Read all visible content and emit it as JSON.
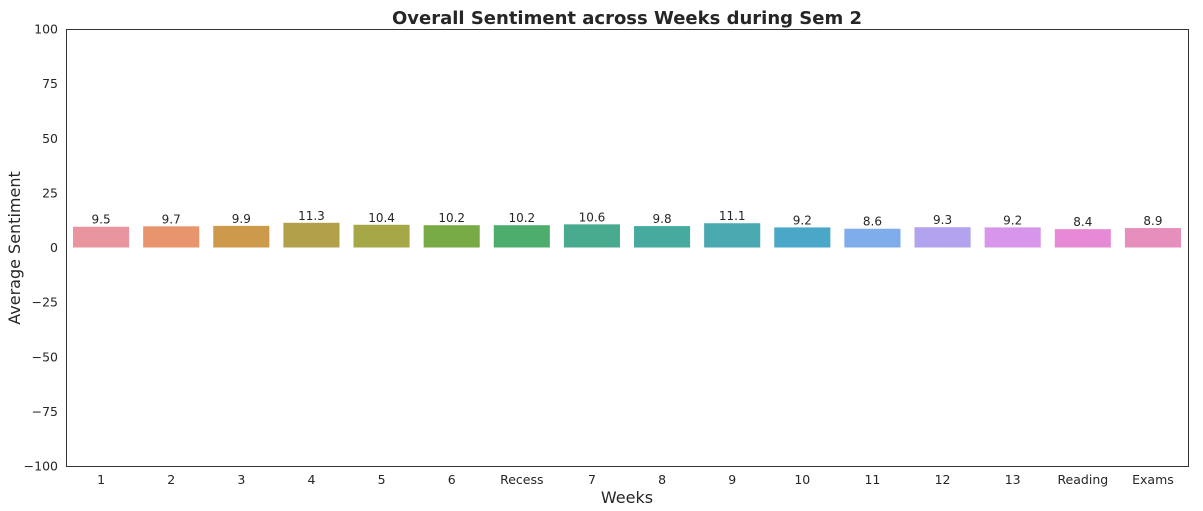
{
  "chart_data": {
    "type": "bar",
    "title": "Overall Sentiment across Weeks during Sem 2",
    "xlabel": "Weeks",
    "ylabel": "Average Sentiment",
    "ylim": [
      -100,
      100
    ],
    "yticks": [
      100,
      75,
      50,
      25,
      0,
      -25,
      -50,
      -75,
      -100
    ],
    "yticklabels": [
      "100",
      "75",
      "50",
      "25",
      "0",
      "−25",
      "−50",
      "−75",
      "−100"
    ],
    "categories": [
      "1",
      "2",
      "3",
      "4",
      "5",
      "6",
      "Recess",
      "7",
      "8",
      "9",
      "10",
      "11",
      "12",
      "13",
      "Reading",
      "Exams"
    ],
    "values": [
      9.5,
      9.7,
      9.9,
      11.3,
      10.4,
      10.2,
      10.2,
      10.6,
      9.8,
      11.1,
      9.2,
      8.6,
      9.3,
      9.2,
      8.4,
      8.9
    ],
    "value_labels": [
      "9.5",
      "9.7",
      "9.9",
      "11.3",
      "10.4",
      "10.2",
      "10.2",
      "10.6",
      "9.8",
      "11.1",
      "9.2",
      "8.6",
      "9.3",
      "9.2",
      "8.4",
      "8.9"
    ],
    "colors": [
      "#e8959f",
      "#e8956d",
      "#cc9a4a",
      "#b3a04a",
      "#a6a847",
      "#78aa46",
      "#4cad6c",
      "#48ab8f",
      "#46aa9f",
      "#49a8b0",
      "#4aa7c7",
      "#7fadeb",
      "#b3a3ee",
      "#d796e9",
      "#e68ad6",
      "#e68fbd"
    ],
    "grid": false,
    "legend": "none"
  }
}
